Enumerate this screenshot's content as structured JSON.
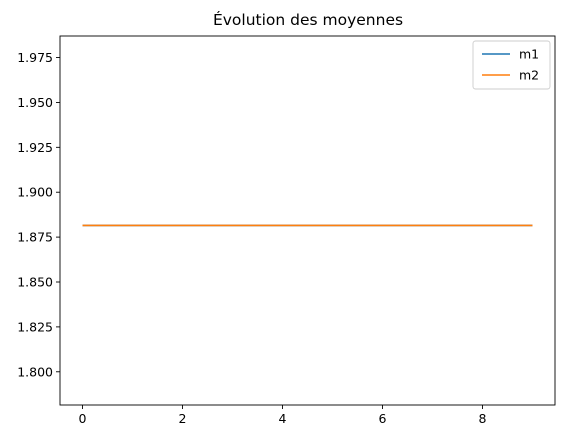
{
  "chart_data": {
    "type": "line",
    "title": "Évolution des moyennes",
    "xlabel": "",
    "ylabel": "",
    "x": [
      0,
      1,
      2,
      3,
      4,
      5,
      6,
      7,
      8,
      9
    ],
    "xlim": [
      -0.45,
      9.45
    ],
    "ylim": [
      1.7815,
      1.987
    ],
    "xticks": [
      0,
      2,
      4,
      6,
      8
    ],
    "xtick_labels": [
      "0",
      "2",
      "4",
      "6",
      "8"
    ],
    "yticks": [
      1.8,
      1.825,
      1.85,
      1.875,
      1.9,
      1.925,
      1.95,
      1.975
    ],
    "ytick_labels": [
      "1.800",
      "1.825",
      "1.850",
      "1.875",
      "1.900",
      "1.925",
      "1.950",
      "1.975"
    ],
    "series": [
      {
        "name": "m1",
        "color": "#1f77b4",
        "values": [
          1.8815,
          1.8815,
          1.8815,
          1.8815,
          1.8815,
          1.8815,
          1.8815,
          1.8815,
          1.8815,
          1.8815
        ]
      },
      {
        "name": "m2",
        "color": "#ff7f0e",
        "values": [
          1.8815,
          1.8815,
          1.8815,
          1.8815,
          1.8815,
          1.8815,
          1.8815,
          1.8815,
          1.8815,
          1.8815
        ]
      }
    ],
    "legend_position": "top-right",
    "grid": false
  }
}
